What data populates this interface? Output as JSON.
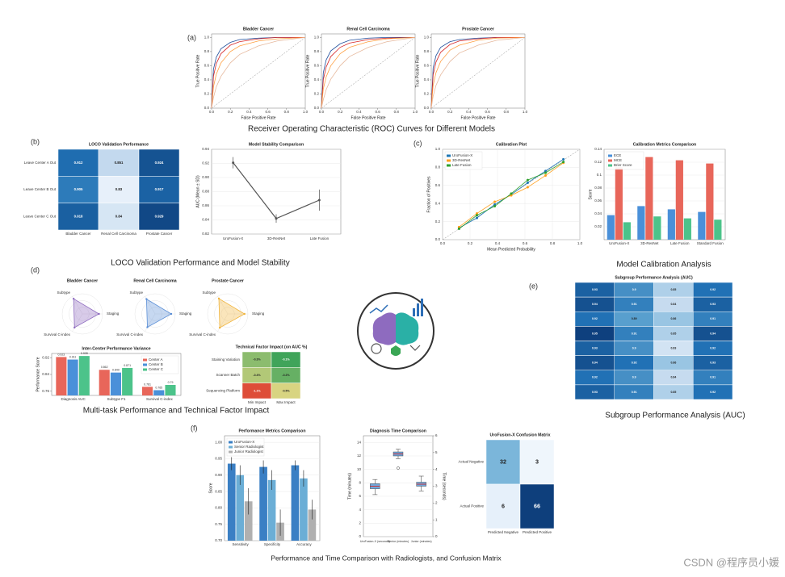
{
  "figure": {
    "panel_labels": [
      "(a)",
      "(b)",
      "(c)",
      "(d)",
      "(e)",
      "(f)"
    ],
    "captions": [
      "Receiver Operating Characteristic (ROC) Curves for Different Models",
      "LOCO Validation Performance and Model Stability",
      "Model Calibration Analysis",
      "Multi-task Performance and Technical Factor Impact",
      "Subgroup Performance Analysis (AUC)",
      "Performance and Time Comparison with Radiologists, and Confusion Matrix"
    ],
    "watermark": "CSDN @程序员小媛"
  },
  "chart_data": [
    {
      "type": "line",
      "title": "Bladder Cancer",
      "xlabel": "False Positive Rate",
      "ylabel": "True Positive Rate",
      "diagonal": true,
      "x": [
        0,
        0.02,
        0.05,
        0.1,
        0.2,
        0.3,
        0.5,
        0.7,
        1
      ],
      "xlim": [
        0,
        1
      ],
      "ylim": [
        0,
        1.05
      ],
      "xticks": [
        {
          "value": 0,
          "label": "0.0"
        },
        0.2,
        0.4,
        0.6,
        0.8,
        {
          "value": 1,
          "label": "1.0"
        }
      ],
      "yticks": [
        {
          "value": 0,
          "label": "0.0"
        },
        0.2,
        0.4,
        0.6,
        0.8,
        {
          "value": 1,
          "label": "1.0"
        }
      ],
      "series": [
        {
          "color": "#1f4e9c",
          "values": [
            0,
            0.55,
            0.72,
            0.84,
            0.93,
            0.97,
            0.99,
            1,
            1
          ]
        },
        {
          "color": "#d62728",
          "values": [
            0,
            0.45,
            0.63,
            0.77,
            0.89,
            0.94,
            0.98,
            1,
            1
          ]
        },
        {
          "color": "#ff9f40",
          "values": [
            0,
            0.3,
            0.48,
            0.64,
            0.8,
            0.88,
            0.95,
            0.98,
            1
          ]
        },
        {
          "color": "#e6b89c",
          "values": [
            0,
            0.15,
            0.3,
            0.45,
            0.64,
            0.76,
            0.88,
            0.95,
            1
          ]
        }
      ]
    },
    {
      "type": "line",
      "title": "Renal Cell Carcinoma",
      "xlabel": "False Positive Rate",
      "ylabel": "True Positive Rate",
      "diagonal": true,
      "x": [
        0,
        0.02,
        0.05,
        0.1,
        0.2,
        0.3,
        0.5,
        0.7,
        1
      ],
      "xlim": [
        0,
        1
      ],
      "ylim": [
        0,
        1.05
      ],
      "xticks": [
        {
          "value": 0,
          "label": "0.0"
        },
        0.2,
        0.4,
        0.6,
        0.8,
        {
          "value": 1,
          "label": "1.0"
        }
      ],
      "yticks": [
        {
          "value": 0,
          "label": "0.0"
        },
        0.2,
        0.4,
        0.6,
        0.8,
        {
          "value": 1,
          "label": "1.0"
        }
      ],
      "series": [
        {
          "color": "#1f4e9c",
          "values": [
            0,
            0.5,
            0.68,
            0.81,
            0.91,
            0.96,
            0.99,
            1,
            1
          ]
        },
        {
          "color": "#d62728",
          "values": [
            0,
            0.4,
            0.58,
            0.73,
            0.86,
            0.92,
            0.97,
            0.99,
            1
          ]
        },
        {
          "color": "#ff9f40",
          "values": [
            0,
            0.27,
            0.44,
            0.6,
            0.77,
            0.86,
            0.94,
            0.98,
            1
          ]
        },
        {
          "color": "#e6b89c",
          "values": [
            0,
            0.12,
            0.26,
            0.41,
            0.6,
            0.73,
            0.86,
            0.94,
            1
          ]
        }
      ]
    },
    {
      "type": "line",
      "title": "Prostate Cancer",
      "xlabel": "False Positive Rate",
      "ylabel": "True Positive Rate",
      "diagonal": true,
      "x": [
        0,
        0.02,
        0.05,
        0.1,
        0.2,
        0.3,
        0.5,
        0.7,
        1
      ],
      "xlim": [
        0,
        1
      ],
      "ylim": [
        0,
        1.05
      ],
      "xticks": [
        {
          "value": 0,
          "label": "0.0"
        },
        0.2,
        0.4,
        0.6,
        0.8,
        {
          "value": 1,
          "label": "1.0"
        }
      ],
      "yticks": [
        {
          "value": 0,
          "label": "0.0"
        },
        0.2,
        0.4,
        0.6,
        0.8,
        {
          "value": 1,
          "label": "1.0"
        }
      ],
      "series": [
        {
          "color": "#1f4e9c",
          "values": [
            0,
            0.57,
            0.74,
            0.86,
            0.94,
            0.97,
            0.99,
            1,
            1
          ]
        },
        {
          "color": "#d62728",
          "values": [
            0,
            0.47,
            0.65,
            0.79,
            0.9,
            0.95,
            0.98,
            1,
            1
          ]
        },
        {
          "color": "#ff9f40",
          "values": [
            0,
            0.32,
            0.5,
            0.66,
            0.82,
            0.89,
            0.96,
            0.99,
            1
          ]
        },
        {
          "color": "#e6b89c",
          "values": [
            0,
            0.17,
            0.32,
            0.47,
            0.66,
            0.78,
            0.89,
            0.96,
            1
          ]
        }
      ]
    },
    {
      "type": "heatmap",
      "title": "LOCO Validation Performance",
      "rows": [
        "Leave Center A Out",
        "Leave Center B Out",
        "Leave Center C Out"
      ],
      "columns": [
        "Bladder Cancer",
        "Renal Cell Carcinoma",
        "Prostate Cancer"
      ],
      "values": [
        [
          0.912,
          0.851,
          0.924
        ],
        [
          0.905,
          0.83,
          0.917
        ],
        [
          0.918,
          0.84,
          0.929
        ]
      ],
      "vlim": [
        0.82,
        0.94
      ],
      "cmap": [
        "#f7fbff",
        "#c6dbef",
        "#6baed6",
        "#2171b5",
        "#08306b"
      ]
    },
    {
      "type": "line",
      "title": "Model Stability Comparison",
      "ylabel": "AUC (Mean ± SD)",
      "grid": true,
      "markers": true,
      "categories": [
        "UroFusion-X",
        "3D-ResNet",
        "Late Fusion"
      ],
      "ylim": [
        0.82,
        0.94
      ],
      "yticks": [
        0.82,
        0.84,
        0.86,
        0.88,
        {
          "value": 0.9,
          "label": "0.90"
        },
        0.92,
        0.94
      ],
      "series": [
        {
          "color": "#555555",
          "values": [
            0.921,
            0.842,
            0.868
          ],
          "errors": [
            0.008,
            0.006,
            0.015
          ]
        }
      ]
    },
    {
      "type": "line",
      "title": "Calibration Plot",
      "xlabel": "Mean Predicted Probability",
      "ylabel": "Fraction of Positives",
      "diagonal": true,
      "grid": true,
      "markers": true,
      "legend": "upper left",
      "x": [
        0.12,
        0.25,
        0.38,
        0.5,
        0.62,
        0.75,
        0.88
      ],
      "xlim": [
        0,
        1
      ],
      "ylim": [
        0,
        1
      ],
      "xticks": [
        {
          "value": 0,
          "label": "0.0"
        },
        0.2,
        0.4,
        0.6,
        0.8,
        {
          "value": 1,
          "label": "1.0"
        }
      ],
      "yticks": [
        {
          "value": 0,
          "label": "0.0"
        },
        0.2,
        0.4,
        0.6,
        0.8,
        {
          "value": 1,
          "label": "1.0"
        }
      ],
      "series": [
        {
          "name": "UroFusion-X",
          "color": "#1f77b4",
          "values": [
            0.13,
            0.24,
            0.39,
            0.5,
            0.63,
            0.76,
            0.89
          ]
        },
        {
          "name": "3D-ResNet",
          "color": "#ff9f1c",
          "values": [
            0.14,
            0.29,
            0.42,
            0.49,
            0.58,
            0.71,
            0.85
          ]
        },
        {
          "name": "Late Fusion",
          "color": "#2ca02c",
          "values": [
            0.12,
            0.27,
            0.37,
            0.51,
            0.66,
            0.74,
            0.86
          ]
        }
      ]
    },
    {
      "type": "bar",
      "title": "Calibration Metrics Comparison",
      "ylabel": "Score",
      "grid": true,
      "legend": "upper left",
      "categories": [
        "UroFusion-X",
        "3D-ResNet",
        "Late Fusion",
        "Standard Fusion"
      ],
      "ylim": [
        0,
        0.14
      ],
      "yticks": [
        0.02,
        0.04,
        0.06,
        0.08,
        0.1,
        0.12,
        0.14
      ],
      "series": [
        {
          "name": "ECE",
          "color": "#4a90d9",
          "values": [
            0.038,
            0.052,
            0.047,
            0.043
          ]
        },
        {
          "name": "MCE",
          "color": "#e8665a",
          "values": [
            0.112,
            0.128,
            0.123,
            0.118
          ]
        },
        {
          "name": "Brier Score",
          "color": "#4cc38a",
          "values": [
            0.027,
            0.036,
            0.033,
            0.031
          ]
        }
      ]
    },
    {
      "type": "radar",
      "title": "Bladder Cancer",
      "categories": [
        "Subtype",
        "Staging",
        "Survival C-index"
      ],
      "values": [
        0.87,
        0.82,
        0.78
      ],
      "rlim": [
        0,
        1
      ],
      "color": "#8e6bbf"
    },
    {
      "type": "radar",
      "title": "Renal Cell Carcinoma",
      "categories": [
        "Subtype",
        "Staging",
        "Survival C-index"
      ],
      "values": [
        0.85,
        0.8,
        0.76
      ],
      "rlim": [
        0,
        1
      ],
      "color": "#5b8fd6"
    },
    {
      "type": "radar",
      "title": "Prostate Cancer",
      "categories": [
        "Subtype",
        "Staging",
        "Survival C-index"
      ],
      "values": [
        0.88,
        0.83,
        0.79
      ],
      "rlim": [
        0,
        1
      ],
      "color": "#f0b43c"
    },
    {
      "type": "bar",
      "title": "Inter-Center Performance Variance",
      "ylabel": "Performance Score",
      "show_values": true,
      "legend": "upper right",
      "categories": [
        "Diagnosis AUC",
        "Subtype F1",
        "Survival C-index"
      ],
      "ylim": [
        0.74,
        0.94
      ],
      "yticks": [
        0.76,
        0.84,
        0.92
      ],
      "series": [
        {
          "name": "Center A",
          "color": "#e8665a",
          "values": [
            0.923,
            0.862,
            0.781
          ]
        },
        {
          "name": "Center B",
          "color": "#4a90d9",
          "values": [
            0.911,
            0.849,
            0.765
          ]
        },
        {
          "name": "Center C",
          "color": "#4cc38a",
          "values": [
            0.928,
            0.871,
            0.79
          ]
        }
      ]
    },
    {
      "type": "heatmap",
      "title": "Technical Factor Impact (on AUC %)",
      "rows": [
        "Staining Variation",
        "Scanner Batch",
        "Sequencing Platform"
      ],
      "columns": [
        "Min Impact",
        "Max Impact"
      ],
      "values": [
        [
          -0.3,
          -0.1
        ],
        [
          -0.4,
          -0.2
        ],
        [
          -1.1,
          -0.5
        ]
      ],
      "value_labels": [
        [
          "-0.3%",
          "-0.1%"
        ],
        [
          "-0.4%",
          "-0.2%"
        ],
        [
          "-1.1%",
          "-0.5%"
        ]
      ],
      "vlim": [
        -1.2,
        0
      ],
      "cmap": [
        "#d73027",
        "#fee08b",
        "#1a9850"
      ]
    },
    {
      "type": "heatmap",
      "title": "Subgroup Performance Analysis (AUC)",
      "rows": [
        null,
        null,
        null,
        null,
        null,
        null,
        null,
        null
      ],
      "columns": [
        null,
        null,
        null,
        null
      ],
      "values": [
        [
          0.93,
          0.9,
          0.85,
          0.92
        ],
        [
          0.94,
          0.91,
          0.84,
          0.93
        ],
        [
          0.92,
          0.89,
          0.86,
          0.91
        ],
        [
          0.95,
          0.91,
          0.85,
          0.94
        ],
        [
          0.93,
          0.9,
          0.83,
          0.92
        ],
        [
          0.94,
          0.92,
          0.86,
          0.93
        ],
        [
          0.92,
          0.9,
          0.84,
          0.91
        ],
        [
          0.93,
          0.91,
          0.85,
          0.92
        ]
      ],
      "vlim": [
        0.8,
        0.96
      ],
      "cmap": [
        "#f7fbff",
        "#c6dbef",
        "#6baed6",
        "#2171b5",
        "#08306b"
      ]
    },
    {
      "type": "bar",
      "title": "Performance Metrics Comparison",
      "ylabel": "Score",
      "grid": true,
      "legend": "upper left",
      "categories": [
        "Sensitivity",
        "Specificity",
        "Accuracy"
      ],
      "ylim": [
        0.7,
        1.02
      ],
      "yticks": [
        {
          "value": 0.7,
          "label": "0.70"
        },
        0.75,
        {
          "value": 0.8,
          "label": "0.80"
        },
        0.85,
        {
          "value": 0.9,
          "label": "0.90"
        },
        0.95,
        {
          "value": 1,
          "label": "1.00"
        }
      ],
      "series": [
        {
          "name": "UroFusion-X",
          "color": "#3a7fc4",
          "values": [
            0.935,
            0.925,
            0.93
          ],
          "errors": [
            0.02,
            0.02,
            0.015
          ]
        },
        {
          "name": "Senior Radiologist",
          "color": "#6baed6",
          "values": [
            0.9,
            0.885,
            0.89
          ],
          "errors": [
            0.03,
            0.03,
            0.025
          ]
        },
        {
          "name": "Junior Radiologist",
          "color": "#b0b0b0",
          "values": [
            0.82,
            0.755,
            0.795
          ],
          "errors": [
            0.04,
            0.04,
            0.03
          ]
        }
      ]
    },
    {
      "type": "box",
      "title": "Diagnosis Time Comparison",
      "ylabel": "Time (minutes)",
      "y2label": "Time (seconds)",
      "grid": true,
      "color": "#6fa8dc",
      "median_color": "#d62728",
      "categories": [
        "UroFusion-X (seconds)",
        "Senior (minutes)",
        "Junior (minutes)"
      ],
      "ylim": [
        0,
        15
      ],
      "yticks": [
        0,
        2,
        4,
        6,
        8,
        10,
        12,
        14
      ],
      "y2lim": [
        0,
        6
      ],
      "y2ticks": [
        0,
        1,
        2,
        3,
        4,
        5,
        6
      ],
      "boxes": [
        {
          "min": 2.5,
          "q1": 2.85,
          "median": 3.0,
          "q3": 3.15,
          "max": 3.4,
          "axis": "y2",
          "fliers": []
        },
        {
          "min": 11.6,
          "q1": 12.0,
          "median": 12.3,
          "q3": 12.6,
          "max": 13.0,
          "axis": "y",
          "fliers": [
            10.2
          ]
        },
        {
          "min": 6.8,
          "q1": 7.5,
          "median": 7.8,
          "q3": 8.1,
          "max": 9.0,
          "axis": "y",
          "fliers": []
        }
      ]
    },
    {
      "type": "heatmap",
      "title": "UroFusion-X Confusion Matrix",
      "rows": [
        "Actual Negative",
        "Actual Positive"
      ],
      "columns": [
        "Predicted Negative",
        "Predicted Positive"
      ],
      "values": [
        [
          32,
          3
        ],
        [
          6,
          66
        ]
      ],
      "vlim": [
        0,
        70
      ],
      "cmap": [
        "#f7fbff",
        "#c6dbef",
        "#6baed6",
        "#2171b5",
        "#08306b"
      ]
    }
  ]
}
